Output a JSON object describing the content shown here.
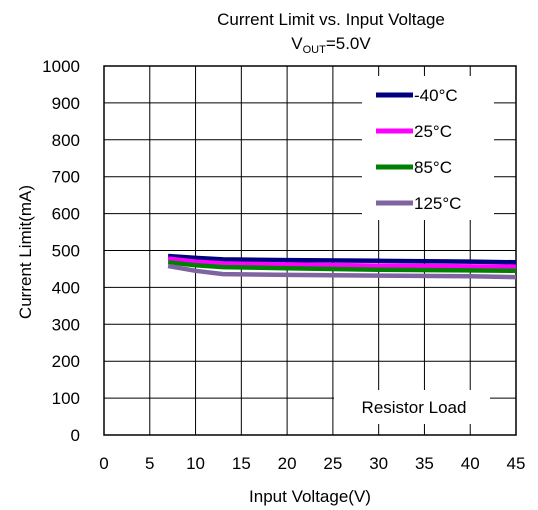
{
  "chart_data": {
    "type": "line",
    "title": "Current Limit vs. Input Voltage",
    "subtitle": {
      "base": "V",
      "sub": "OUT",
      "rest": "=5.0V"
    },
    "xlabel": "Input Voltage(V)",
    "ylabel": "Current Limit(mA)",
    "xlim": [
      0,
      45
    ],
    "ylim": [
      0,
      1000
    ],
    "xticks": [
      0,
      5,
      10,
      15,
      20,
      25,
      30,
      35,
      40,
      45
    ],
    "yticks": [
      0,
      100,
      200,
      300,
      400,
      500,
      600,
      700,
      800,
      900,
      1000
    ],
    "grid": true,
    "legend_position": "top-right",
    "annotation": "Resistor Load",
    "series": [
      {
        "name": "-40°C",
        "color": "#000080",
        "x": [
          7,
          10,
          13,
          20,
          30,
          40,
          45
        ],
        "y": [
          485,
          480,
          476,
          474,
          472,
          470,
          468
        ]
      },
      {
        "name": "25°C",
        "color": "#ff00ff",
        "x": [
          7,
          10,
          13,
          20,
          30,
          40,
          45
        ],
        "y": [
          478,
          470,
          465,
          462,
          459,
          457,
          456
        ]
      },
      {
        "name": "85°C",
        "color": "#008000",
        "x": [
          7,
          10,
          13,
          20,
          30,
          40,
          45
        ],
        "y": [
          468,
          460,
          455,
          452,
          448,
          446,
          445
        ]
      },
      {
        "name": "125°C",
        "color": "#8064a2",
        "x": [
          7,
          10,
          13,
          20,
          30,
          40,
          45
        ],
        "y": [
          458,
          445,
          436,
          434,
          432,
          430,
          428
        ]
      }
    ]
  }
}
